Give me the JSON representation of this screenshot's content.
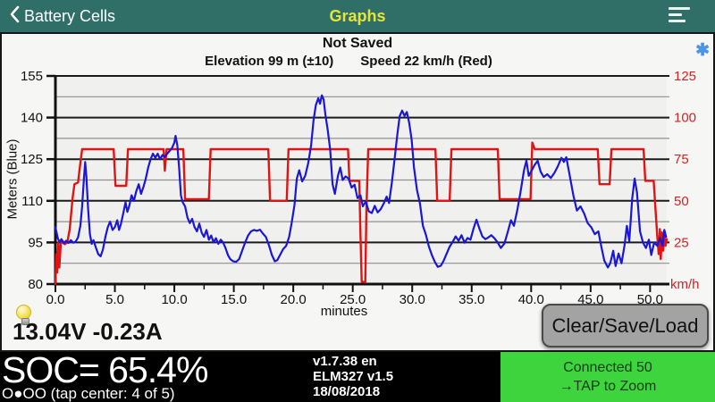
{
  "top_bar": {
    "back_label": "Battery Cells",
    "title": "Graphs"
  },
  "chart": {
    "status": "Not Saved",
    "subtitle_elevation": "Elevation 99 m (±10)",
    "subtitle_speed": "Speed 22 km/h (Red)",
    "left_axis_label": "Meters  (Blue)",
    "right_axis_unit": "km/h",
    "x_axis_label": "minutes",
    "zoom_star_icon": "✱"
  },
  "chart_data": {
    "type": "line",
    "title": "Not Saved",
    "subtitle": "Elevation 99 m (±10)   Speed 22 km/h (Red)",
    "legend_position": "none",
    "grid": {
      "major_color": "#1b1b1b",
      "minor_color": "#8f8f8f"
    },
    "x_axis": {
      "label": "minutes",
      "min": 0,
      "max": 51.4,
      "minor_step": 2.5,
      "major_ticks": [
        0,
        5,
        10,
        15,
        20,
        25,
        30,
        35,
        40,
        45,
        50
      ],
      "major_tick_labels": [
        "0.0",
        "5.0",
        "10.0",
        "15.0",
        "20.0",
        "25.0",
        "30.0",
        "35.0",
        "40.0",
        "45.0",
        "50.0"
      ]
    },
    "y_left": {
      "label": "Meters (Blue)",
      "min": 80,
      "max": 155,
      "ticks": [
        80,
        95,
        110,
        125,
        140,
        155
      ],
      "minor_step": 7.5
    },
    "y_right": {
      "label": "km/h",
      "min": 0,
      "max": 125,
      "ticks": [
        25,
        50,
        75,
        100,
        125
      ]
    },
    "series": [
      {
        "name": "Elevation (m)",
        "axis": "left",
        "color": "#1a17d8",
        "points": [
          [
            0,
            100.5
          ],
          [
            0.2,
            96.5
          ],
          [
            0.35,
            95
          ],
          [
            0.5,
            96.2
          ],
          [
            0.7,
            94.6
          ],
          [
            0.9,
            95.6
          ],
          [
            1.1,
            94.8
          ],
          [
            1.3,
            95.8
          ],
          [
            1.5,
            94.9
          ],
          [
            1.7,
            95.3
          ],
          [
            1.9,
            96.8
          ],
          [
            2.1,
            101
          ],
          [
            2.25,
            108
          ],
          [
            2.4,
            118
          ],
          [
            2.5,
            124
          ],
          [
            2.6,
            119
          ],
          [
            2.75,
            107
          ],
          [
            2.9,
            98
          ],
          [
            3.05,
            94.5
          ],
          [
            3.2,
            95.8
          ],
          [
            3.4,
            93.2
          ],
          [
            3.6,
            90.8
          ],
          [
            3.8,
            90
          ],
          [
            4,
            92.5
          ],
          [
            4.2,
            97
          ],
          [
            4.4,
            100.5
          ],
          [
            4.6,
            102.5
          ],
          [
            4.8,
            99.5
          ],
          [
            5,
            100.5
          ],
          [
            5.2,
            103
          ],
          [
            5.35,
            99.5
          ],
          [
            5.5,
            101.5
          ],
          [
            5.7,
            105.5
          ],
          [
            5.9,
            109.5
          ],
          [
            6.05,
            106
          ],
          [
            6.2,
            108
          ],
          [
            6.4,
            112
          ],
          [
            6.6,
            110
          ],
          [
            6.8,
            113.5
          ],
          [
            7,
            116
          ],
          [
            7.2,
            112.5
          ],
          [
            7.4,
            115
          ],
          [
            7.6,
            118
          ],
          [
            7.8,
            122
          ],
          [
            8,
            125
          ],
          [
            8.2,
            127
          ],
          [
            8.4,
            125.5
          ],
          [
            8.6,
            127
          ],
          [
            8.8,
            125
          ],
          [
            9,
            126.5
          ],
          [
            9.2,
            125.8
          ],
          [
            9.4,
            127
          ],
          [
            9.6,
            128
          ],
          [
            9.8,
            129
          ],
          [
            10,
            131
          ],
          [
            10.1,
            133.4
          ],
          [
            10.25,
            130
          ],
          [
            10.4,
            122
          ],
          [
            10.55,
            112
          ],
          [
            10.7,
            109.5
          ],
          [
            10.9,
            108
          ],
          [
            11.1,
            104
          ],
          [
            11.3,
            102
          ],
          [
            11.5,
            103.5
          ],
          [
            11.7,
            100.5
          ],
          [
            11.9,
            99
          ],
          [
            12.1,
            101.8
          ],
          [
            12.3,
            98.5
          ],
          [
            12.5,
            97
          ],
          [
            12.7,
            99.5
          ],
          [
            12.9,
            96
          ],
          [
            13.1,
            97.5
          ],
          [
            13.3,
            95
          ],
          [
            13.5,
            96.5
          ],
          [
            13.7,
            94.5
          ],
          [
            13.9,
            96
          ],
          [
            14.1,
            95
          ],
          [
            14.3,
            93
          ],
          [
            14.5,
            90.5
          ],
          [
            14.7,
            89
          ],
          [
            14.95,
            88.2
          ],
          [
            15.2,
            88
          ],
          [
            15.45,
            89
          ],
          [
            15.7,
            92
          ],
          [
            15.95,
            95
          ],
          [
            16.2,
            97.5
          ],
          [
            16.45,
            99
          ],
          [
            16.7,
            99.5
          ],
          [
            16.95,
            99.2
          ],
          [
            17.2,
            99.6
          ],
          [
            17.45,
            98.2
          ],
          [
            17.7,
            97
          ],
          [
            17.95,
            94
          ],
          [
            18.2,
            90.5
          ],
          [
            18.45,
            88.2
          ],
          [
            18.65,
            88.6
          ],
          [
            18.9,
            90.6
          ],
          [
            19.15,
            92.6
          ],
          [
            19.4,
            93.8
          ],
          [
            19.65,
            97
          ],
          [
            19.85,
            101.8
          ],
          [
            20.1,
            108.5
          ],
          [
            20.3,
            118
          ],
          [
            20.5,
            121
          ],
          [
            20.75,
            117
          ],
          [
            21,
            119
          ],
          [
            21.25,
            123.5
          ],
          [
            21.5,
            130
          ],
          [
            21.7,
            139
          ],
          [
            21.9,
            144.5
          ],
          [
            22.1,
            147
          ],
          [
            22.25,
            145
          ],
          [
            22.4,
            148
          ],
          [
            22.55,
            146.5
          ],
          [
            22.7,
            141
          ],
          [
            22.9,
            135.5
          ],
          [
            23.1,
            128.5
          ],
          [
            23.3,
            116
          ],
          [
            23.5,
            112.5
          ],
          [
            23.75,
            119
          ],
          [
            23.95,
            122
          ],
          [
            24.15,
            117.5
          ],
          [
            24.4,
            118.8
          ],
          [
            24.65,
            118
          ],
          [
            24.9,
            114.8
          ],
          [
            25.15,
            115.8
          ],
          [
            25.4,
            111
          ],
          [
            25.65,
            112
          ],
          [
            25.85,
            108
          ],
          [
            26.1,
            109.8
          ],
          [
            26.35,
            106.2
          ],
          [
            26.6,
            105.6
          ],
          [
            26.85,
            108.2
          ],
          [
            27.1,
            105.8
          ],
          [
            27.35,
            107
          ],
          [
            27.6,
            109
          ],
          [
            27.85,
            111.5
          ],
          [
            28.05,
            109.2
          ],
          [
            28.3,
            117
          ],
          [
            28.5,
            124.5
          ],
          [
            28.75,
            134
          ],
          [
            28.95,
            140.5
          ],
          [
            29.15,
            142.5
          ],
          [
            29.35,
            140.6
          ],
          [
            29.55,
            142
          ],
          [
            29.75,
            138
          ],
          [
            29.95,
            132
          ],
          [
            30.15,
            122
          ],
          [
            30.4,
            114
          ],
          [
            30.65,
            109
          ],
          [
            30.9,
            101
          ],
          [
            31.15,
            97.8
          ],
          [
            31.4,
            93.5
          ],
          [
            31.65,
            90.5
          ],
          [
            31.9,
            88
          ],
          [
            32.15,
            86.2
          ],
          [
            32.4,
            86.6
          ],
          [
            32.65,
            88.5
          ],
          [
            32.9,
            91
          ],
          [
            33.15,
            93.5
          ],
          [
            33.4,
            95.2
          ],
          [
            33.65,
            97.2
          ],
          [
            33.9,
            95.6
          ],
          [
            34.15,
            97.6
          ],
          [
            34.4,
            94.9
          ],
          [
            34.65,
            96.6
          ],
          [
            34.9,
            96
          ],
          [
            35.15,
            100
          ],
          [
            35.4,
            103.2
          ],
          [
            35.65,
            100
          ],
          [
            35.9,
            97.2
          ],
          [
            36.15,
            96.2
          ],
          [
            36.4,
            96.8
          ],
          [
            36.65,
            97.6
          ],
          [
            36.9,
            96.6
          ],
          [
            37.15,
            95.2
          ],
          [
            37.45,
            93
          ],
          [
            37.75,
            94.6
          ],
          [
            38.05,
            99
          ],
          [
            38.3,
            103
          ],
          [
            38.55,
            101
          ],
          [
            38.85,
            107
          ],
          [
            39.1,
            113
          ],
          [
            39.4,
            121
          ],
          [
            39.6,
            124.5
          ],
          [
            39.8,
            119
          ],
          [
            40.05,
            121
          ],
          [
            40.3,
            123
          ],
          [
            40.55,
            124.4
          ],
          [
            40.8,
            120.5
          ],
          [
            41.05,
            118.6
          ],
          [
            41.35,
            119.6
          ],
          [
            41.65,
            118.2
          ],
          [
            41.95,
            120
          ],
          [
            42.25,
            122.5
          ],
          [
            42.55,
            125.5
          ],
          [
            42.75,
            124
          ],
          [
            42.95,
            125.7
          ],
          [
            43.25,
            119
          ],
          [
            43.55,
            112
          ],
          [
            43.85,
            106.5
          ],
          [
            44.15,
            108
          ],
          [
            44.45,
            105.5
          ],
          [
            44.75,
            102
          ],
          [
            45.05,
            100.5
          ],
          [
            45.35,
            98
          ],
          [
            45.65,
            99
          ],
          [
            45.9,
            93.5
          ],
          [
            46.15,
            88.5
          ],
          [
            46.45,
            86
          ],
          [
            46.65,
            87.5
          ],
          [
            46.9,
            92
          ],
          [
            47.1,
            86.5
          ],
          [
            47.35,
            91
          ],
          [
            47.6,
            87.5
          ],
          [
            47.85,
            94
          ],
          [
            48.05,
            101
          ],
          [
            48.25,
            95.5
          ],
          [
            48.5,
            111
          ],
          [
            48.7,
            118
          ],
          [
            48.9,
            113
          ],
          [
            49.15,
            99
          ],
          [
            49.4,
            95
          ],
          [
            49.65,
            93
          ],
          [
            49.9,
            96
          ],
          [
            50.1,
            90.5
          ],
          [
            50.35,
            95
          ],
          [
            50.6,
            93.8
          ],
          [
            50.85,
            96.6
          ],
          [
            51.05,
            93.8
          ],
          [
            51.2,
            99.5
          ],
          [
            51.35,
            97
          ]
        ]
      },
      {
        "name": "Speed (km/h)",
        "axis": "right",
        "color": "#e01414",
        "points": [
          [
            0,
            0
          ],
          [
            0.08,
            18
          ],
          [
            0.15,
            7
          ],
          [
            0.25,
            25
          ],
          [
            0.33,
            10
          ],
          [
            0.45,
            24
          ],
          [
            0.6,
            26
          ],
          [
            0.8,
            24
          ],
          [
            1,
            25
          ],
          [
            1.2,
            33
          ],
          [
            1.45,
            52
          ],
          [
            1.6,
            60
          ],
          [
            1.9,
            61
          ],
          [
            2.05,
            70
          ],
          [
            2.25,
            81
          ],
          [
            4.9,
            81
          ],
          [
            5.05,
            59
          ],
          [
            5.95,
            59
          ],
          [
            6.1,
            81
          ],
          [
            9.1,
            81
          ],
          [
            9.2,
            68
          ],
          [
            9.35,
            81
          ],
          [
            10.75,
            81
          ],
          [
            10.9,
            51
          ],
          [
            12.9,
            51
          ],
          [
            13.05,
            81
          ],
          [
            17.9,
            81
          ],
          [
            18.05,
            50
          ],
          [
            19.45,
            50
          ],
          [
            19.6,
            81
          ],
          [
            24.6,
            81
          ],
          [
            24.72,
            62
          ],
          [
            25.55,
            62
          ],
          [
            25.65,
            30
          ],
          [
            25.75,
            1.5
          ],
          [
            26.05,
            1
          ],
          [
            26.15,
            45
          ],
          [
            26.3,
            81
          ],
          [
            31.95,
            81
          ],
          [
            32.1,
            50
          ],
          [
            33.15,
            50
          ],
          [
            33.3,
            81
          ],
          [
            37.2,
            81
          ],
          [
            37.35,
            51
          ],
          [
            39.95,
            51
          ],
          [
            40.1,
            85
          ],
          [
            40.3,
            81
          ],
          [
            45.6,
            81
          ],
          [
            45.75,
            60
          ],
          [
            46.6,
            60
          ],
          [
            46.75,
            81
          ],
          [
            49.45,
            81
          ],
          [
            49.6,
            62
          ],
          [
            50.3,
            62
          ],
          [
            50.45,
            45
          ],
          [
            50.6,
            29
          ],
          [
            50.72,
            18
          ],
          [
            50.82,
            33
          ],
          [
            50.9,
            15
          ],
          [
            51,
            31
          ],
          [
            51.1,
            20
          ],
          [
            51.2,
            29
          ],
          [
            51.3,
            23
          ],
          [
            51.4,
            27
          ]
        ]
      }
    ]
  },
  "readouts": {
    "voltage_current": "13.04V -0.23A",
    "soc": "SOC= 65.4%",
    "pager": "O●OO (tap center: 4 of 5)"
  },
  "buttons": {
    "clear_save_load": "Clear/Save/Load"
  },
  "footer": {
    "version": "v1.7.38 en",
    "adapter": "ELM327 v1.5",
    "date": "18/08/2018",
    "connection_status": "Connected 50",
    "connection_hint": "→TAP to Zoom"
  },
  "colors": {
    "top_bar": "#2f6f68",
    "title_yellow": "#e4e43a",
    "red": "#d42222",
    "blue": "#1a17d8",
    "green_panel": "#3ed43e",
    "button_gray": "#a3a3a3",
    "asterisk_blue": "#4b94e6"
  }
}
